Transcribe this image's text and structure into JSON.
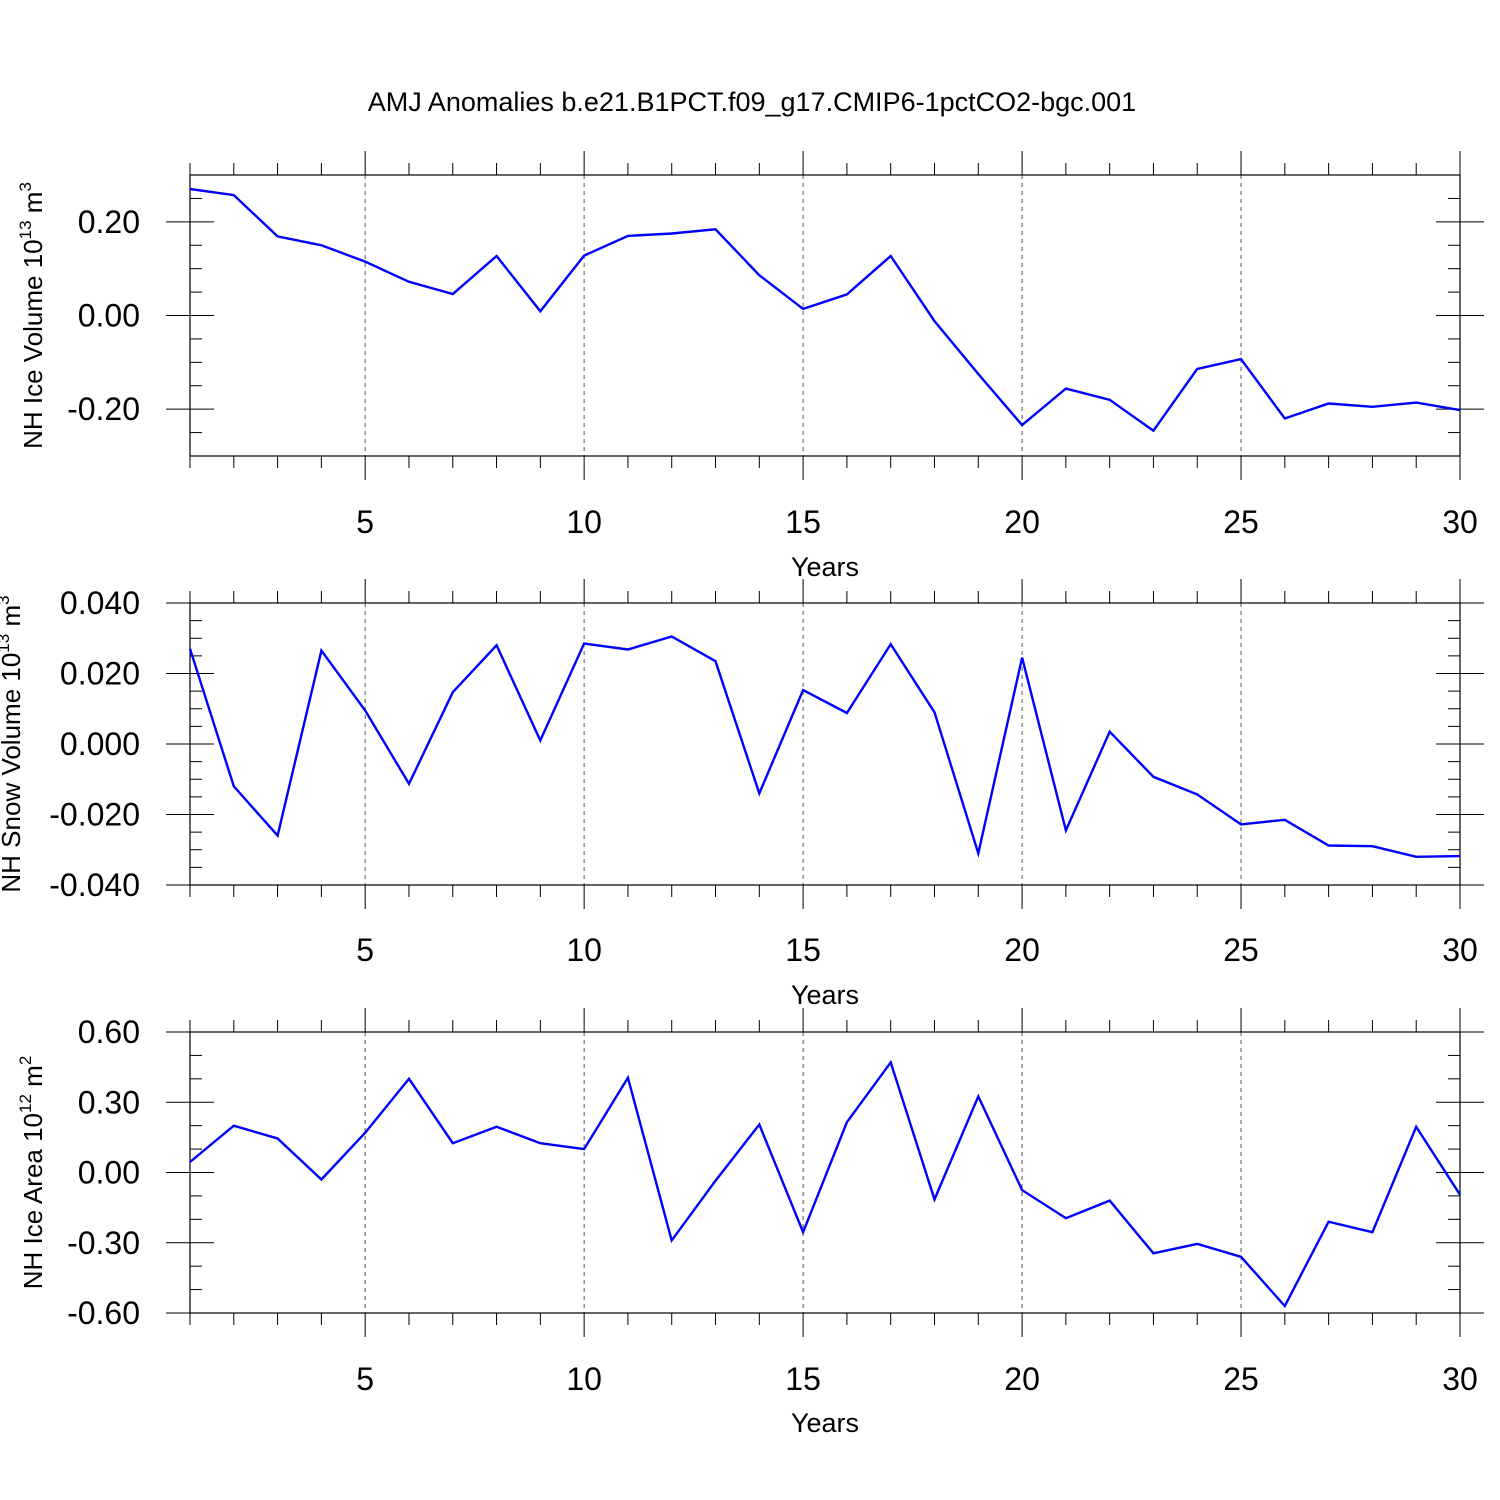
{
  "figure": {
    "title": "AMJ Anomalies b.e21.B1PCT.f09_g17.CMIP6-1pctCO2-bgc.001",
    "line_color": "#0000ff"
  },
  "chart_data": [
    {
      "type": "line",
      "ylabel_text": "NH Ice Volume 10",
      "ylabel_sup": "13",
      "ylabel_unit": " m",
      "ylabel_unit_sup": "3",
      "xlabel": "Years",
      "xlim": [
        1,
        30
      ],
      "ylim": [
        -0.3,
        0.3
      ],
      "x_ticks": [
        5,
        10,
        15,
        20,
        25,
        30
      ],
      "y_ticks": [
        -0.2,
        0.0,
        0.2
      ],
      "y_tick_labels": [
        "-0.20",
        "0.00",
        "0.20"
      ],
      "y_minor_step": 0.05,
      "grid_x": "dashed",
      "x": [
        1,
        2,
        3,
        4,
        5,
        6,
        7,
        8,
        9,
        10,
        11,
        12,
        13,
        14,
        15,
        16,
        17,
        18,
        19,
        20,
        21,
        22,
        23,
        24,
        25,
        26,
        27,
        28,
        29,
        30
      ],
      "series": [
        {
          "values": [
            0.27,
            0.257,
            0.169,
            0.15,
            0.115,
            0.072,
            0.046,
            0.127,
            0.009,
            0.128,
            0.17,
            0.175,
            0.184,
            0.086,
            0.014,
            0.045,
            0.127,
            -0.012,
            -0.125,
            -0.234,
            -0.156,
            -0.18,
            -0.246,
            -0.114,
            -0.093,
            -0.22,
            -0.188,
            -0.195,
            -0.186,
            -0.202
          ]
        }
      ]
    },
    {
      "type": "line",
      "ylabel_text": "NH Snow Volume 10",
      "ylabel_sup": "13",
      "ylabel_unit": " m",
      "ylabel_unit_sup": "3",
      "xlabel": "Years",
      "xlim": [
        1,
        30
      ],
      "ylim": [
        -0.04,
        0.04
      ],
      "x_ticks": [
        5,
        10,
        15,
        20,
        25,
        30
      ],
      "y_ticks": [
        -0.04,
        -0.02,
        0.0,
        0.02,
        0.04
      ],
      "y_tick_labels": [
        "-0.040",
        "-0.020",
        "0.000",
        "0.020",
        "0.040"
      ],
      "y_minor_step": 0.005,
      "grid_x": "dashed",
      "x": [
        1,
        2,
        3,
        4,
        5,
        6,
        7,
        8,
        9,
        10,
        11,
        12,
        13,
        14,
        15,
        16,
        17,
        18,
        19,
        20,
        21,
        22,
        23,
        24,
        25,
        26,
        27,
        28,
        29,
        30
      ],
      "series": [
        {
          "values": [
            0.027,
            -0.012,
            -0.026,
            0.0265,
            0.0095,
            -0.0113,
            0.0147,
            0.028,
            0.001,
            0.0285,
            0.0268,
            0.0305,
            0.0235,
            -0.014,
            0.0153,
            0.0088,
            0.0283,
            0.009,
            -0.031,
            0.0245,
            -0.0245,
            0.0035,
            -0.0093,
            -0.0143,
            -0.0228,
            -0.0215,
            -0.0288,
            -0.029,
            -0.032,
            -0.0318
          ]
        }
      ]
    },
    {
      "type": "line",
      "ylabel_text": "NH Ice Area 10",
      "ylabel_sup": "12",
      "ylabel_unit": " m",
      "ylabel_unit_sup": "2",
      "xlabel": "Years",
      "xlim": [
        1,
        30
      ],
      "ylim": [
        -0.6,
        0.6
      ],
      "x_ticks": [
        5,
        10,
        15,
        20,
        25,
        30
      ],
      "y_ticks": [
        -0.6,
        -0.3,
        0.0,
        0.3,
        0.6
      ],
      "y_tick_labels": [
        "-0.60",
        "-0.30",
        "0.00",
        "0.30",
        "0.60"
      ],
      "y_minor_step": 0.1,
      "grid_x": "dashed",
      "x": [
        1,
        2,
        3,
        4,
        5,
        6,
        7,
        8,
        9,
        10,
        11,
        12,
        13,
        14,
        15,
        16,
        17,
        18,
        19,
        20,
        21,
        22,
        23,
        24,
        25,
        26,
        27,
        28,
        29,
        30
      ],
      "series": [
        {
          "values": [
            0.045,
            0.2,
            0.145,
            -0.03,
            0.17,
            0.4,
            0.125,
            0.195,
            0.125,
            0.1,
            0.405,
            -0.29,
            -0.035,
            0.205,
            -0.255,
            0.215,
            0.47,
            -0.115,
            0.325,
            -0.075,
            -0.195,
            -0.12,
            -0.345,
            -0.305,
            -0.36,
            -0.57,
            -0.21,
            -0.255,
            0.195,
            -0.095
          ]
        }
      ]
    }
  ]
}
